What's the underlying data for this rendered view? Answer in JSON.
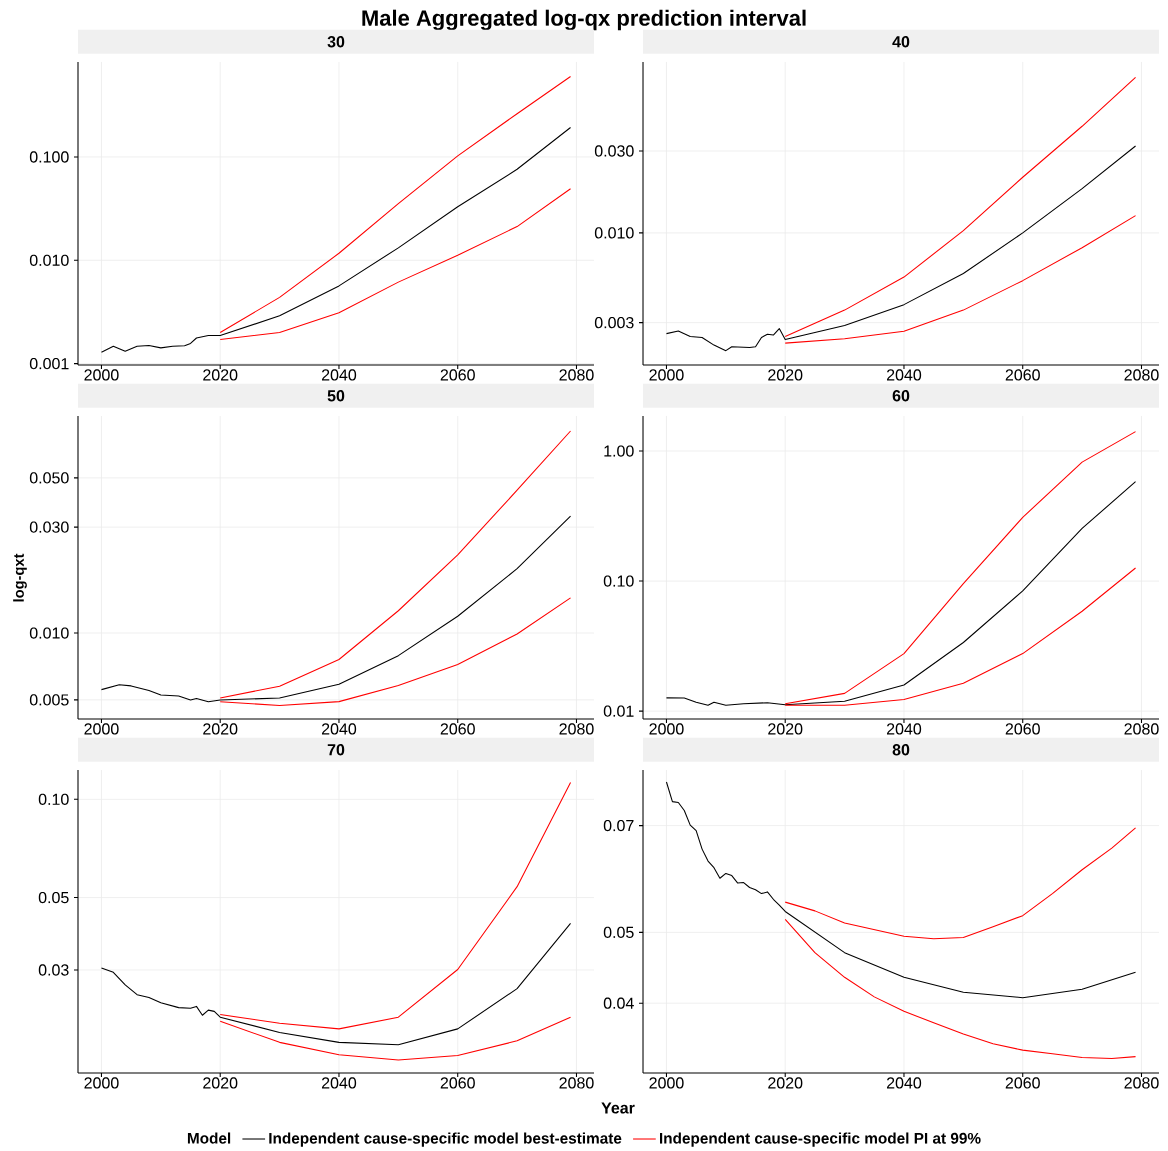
{
  "chart_data": [
    {
      "type": "other",
      "title": "Male Aggregated log-qx prediction interval"
    },
    {
      "type": "line",
      "title": "30",
      "log": "y",
      "grid": true,
      "xlim": [
        1996.05,
        2082.95
      ],
      "ylim": [
        0.00097,
        0.83
      ],
      "xticks": [
        2000,
        2020,
        2040,
        2060,
        2080
      ],
      "yticks": [
        0.001,
        {
          "value": 0.01,
          "label": "0.010"
        },
        {
          "value": 0.1,
          "label": "0.100"
        }
      ],
      "series": [
        {
          "color": "#000000",
          "x": [
            2000,
            2002,
            2004,
            2006,
            2008,
            2010,
            2012,
            2014,
            2015,
            2016,
            2018,
            2020,
            2030,
            2040,
            2050,
            2060,
            2070,
            2079
          ],
          "values": [
            0.00129,
            0.00147,
            0.00132,
            0.00147,
            0.0015,
            0.00142,
            0.00147,
            0.00149,
            0.00157,
            0.00177,
            0.00187,
            0.00187,
            0.0029,
            0.00565,
            0.0132,
            0.033,
            0.076,
            0.193
          ]
        },
        {
          "color": "#ff0000",
          "x": [
            2020,
            2030,
            2040,
            2050,
            2060,
            2070,
            2079
          ],
          "values": [
            0.002,
            0.00438,
            0.0117,
            0.0353,
            0.1026,
            0.262,
            0.6
          ]
        },
        {
          "color": "#ff0000",
          "x": [
            2020,
            2030,
            2040,
            2050,
            2060,
            2070,
            2079
          ],
          "values": [
            0.00171,
            0.002,
            0.00311,
            0.00615,
            0.0112,
            0.0212,
            0.0493
          ]
        }
      ]
    },
    {
      "type": "line",
      "title": "40",
      "log": "y",
      "grid": true,
      "xlim": [
        1996.05,
        2082.95
      ],
      "ylim": [
        0.0017,
        0.099
      ],
      "xticks": [
        2000,
        2020,
        2040,
        2060,
        2080
      ],
      "yticks": [
        0.003,
        {
          "value": 0.01,
          "label": "0.010"
        },
        {
          "value": 0.03,
          "label": "0.030"
        }
      ],
      "series": [
        {
          "color": "#000000",
          "x": [
            2000,
            2002,
            2004,
            2006,
            2008,
            2010,
            2011,
            2014,
            2015,
            2016,
            2017,
            2018,
            2019,
            2020,
            2030,
            2040,
            2050,
            2060,
            2070,
            2079
          ],
          "values": [
            0.00259,
            0.00268,
            0.00249,
            0.00246,
            0.00222,
            0.00206,
            0.00217,
            0.00215,
            0.00217,
            0.00246,
            0.00257,
            0.00254,
            0.00277,
            0.00239,
            0.00289,
            0.00382,
            0.0058,
            0.01,
            0.0181,
            0.0321
          ]
        },
        {
          "color": "#ff0000",
          "x": [
            2020,
            2030,
            2040,
            2050,
            2060,
            2070,
            2079
          ],
          "values": [
            0.00249,
            0.00355,
            0.00553,
            0.0103,
            0.0211,
            0.0418,
            0.0805
          ]
        },
        {
          "color": "#ff0000",
          "x": [
            2020,
            2030,
            2040,
            2050,
            2060,
            2070,
            2079
          ],
          "values": [
            0.00228,
            0.00242,
            0.00267,
            0.00355,
            0.00527,
            0.0082,
            0.0126
          ]
        }
      ]
    },
    {
      "type": "line",
      "title": "50",
      "ylabel": "log-qxt",
      "log": "y",
      "grid": true,
      "xlim": [
        1996.05,
        2082.95
      ],
      "ylim": [
        0.0041,
        0.095
      ],
      "xticks": [
        2000,
        2020,
        2040,
        2060,
        2080
      ],
      "yticks": [
        0.005,
        {
          "value": 0.01,
          "label": "0.010"
        },
        {
          "value": 0.03,
          "label": "0.030"
        },
        {
          "value": 0.05,
          "label": "0.050"
        }
      ],
      "series": [
        {
          "color": "#000000",
          "x": [
            2000,
            2003,
            2005,
            2008,
            2010,
            2013,
            2015,
            2016,
            2018,
            2020,
            2030,
            2040,
            2050,
            2060,
            2070,
            2079
          ],
          "values": [
            0.00556,
            0.00585,
            0.00578,
            0.00551,
            0.00526,
            0.0052,
            0.00499,
            0.00507,
            0.0049,
            0.00499,
            0.0051,
            0.00588,
            0.00791,
            0.0119,
            0.0195,
            0.0336
          ]
        },
        {
          "color": "#ff0000",
          "x": [
            2020,
            2030,
            2040,
            2050,
            2060,
            2070,
            2079
          ],
          "values": [
            0.0051,
            0.00576,
            0.0076,
            0.0126,
            0.0225,
            0.044,
            0.0813
          ]
        },
        {
          "color": "#ff0000",
          "x": [
            2020,
            2030,
            2040,
            2050,
            2060,
            2070,
            2079
          ],
          "values": [
            0.0049,
            0.00472,
            0.00491,
            0.00581,
            0.00722,
            0.0099,
            0.0144
          ]
        }
      ]
    },
    {
      "type": "line",
      "title": "60",
      "log": "y",
      "grid": true,
      "xlim": [
        1996.05,
        2082.95
      ],
      "ylim": [
        0.0087,
        1.86
      ],
      "xticks": [
        2000,
        2020,
        2040,
        2060,
        2080
      ],
      "yticks": [
        0.01,
        {
          "value": 0.1,
          "label": "0.10"
        },
        {
          "value": 1,
          "label": "1.00"
        }
      ],
      "series": [
        {
          "color": "#000000",
          "x": [
            2000,
            2003,
            2005,
            2007,
            2008,
            2010,
            2013,
            2017,
            2020,
            2030,
            2040,
            2050,
            2060,
            2070,
            2079
          ],
          "values": [
            0.01265,
            0.0126,
            0.0117,
            0.0111,
            0.0117,
            0.0111,
            0.0114,
            0.0116,
            0.0112,
            0.0119,
            0.0159,
            0.0337,
            0.084,
            0.254,
            0.582
          ]
        },
        {
          "color": "#ff0000",
          "x": [
            2020,
            2030,
            2040,
            2050,
            2060,
            2070,
            2079
          ],
          "values": [
            0.0114,
            0.0137,
            0.0277,
            0.0955,
            0.309,
            0.822,
            1.41
          ]
        },
        {
          "color": "#ff0000",
          "x": [
            2020,
            2030,
            2040,
            2050,
            2060,
            2070,
            2079
          ],
          "values": [
            0.0111,
            0.0111,
            0.0123,
            0.0164,
            0.0277,
            0.0586,
            0.126
          ]
        }
      ]
    },
    {
      "type": "line",
      "title": "70",
      "xlabel": "Year",
      "legend": "bottom",
      "legend_title": "Model",
      "log": "y",
      "grid": true,
      "xlim": [
        1996.05,
        2082.95
      ],
      "ylim": [
        0.0145,
        0.123
      ],
      "xticks": [
        2000,
        2020,
        2040,
        2060,
        2080
      ],
      "yticks": [
        0.03,
        0.05,
        {
          "value": 0.1,
          "label": "0.10"
        }
      ],
      "series": [
        {
          "name": "Independent cause-specific model best-estimate",
          "color": "#000000",
          "x": [
            2000,
            2002,
            2004,
            2006,
            2008,
            2010,
            2013,
            2015,
            2016,
            2017,
            2018,
            2019,
            2020,
            2030,
            2040,
            2050,
            2060,
            2070,
            2079
          ],
          "values": [
            0.0304,
            0.0295,
            0.027,
            0.0252,
            0.0247,
            0.0238,
            0.023,
            0.0229,
            0.0232,
            0.0218,
            0.0226,
            0.0224,
            0.0215,
            0.0193,
            0.018,
            0.0177,
            0.0198,
            0.0263,
            0.0417
          ]
        },
        {
          "name": "Independent cause-specific model PI at 99%",
          "color": "#ff0000",
          "x": [
            2020,
            2030,
            2040,
            2050,
            2060,
            2070,
            2079
          ],
          "values": [
            0.0219,
            0.0206,
            0.0198,
            0.0215,
            0.0301,
            0.054,
            0.1127
          ]
        },
        {
          "color": "#ff0000",
          "x": [
            2020,
            2030,
            2040,
            2050,
            2060,
            2070,
            2079
          ],
          "values": [
            0.0209,
            0.018,
            0.0165,
            0.0159,
            0.0164,
            0.0182,
            0.0215
          ]
        }
      ]
    },
    {
      "type": "line",
      "title": "80",
      "log": "y",
      "grid": true,
      "xlim": [
        1996.05,
        2082.95
      ],
      "ylim": [
        0.0321,
        0.0834
      ],
      "xticks": [
        2000,
        2020,
        2040,
        2060,
        2080
      ],
      "yticks": [
        0.04,
        0.05,
        0.07
      ],
      "series": [
        {
          "color": "#000000",
          "x": [
            2000,
            2001,
            2002,
            2003,
            2004,
            2005,
            2006,
            2007,
            2008,
            2009,
            2010,
            2011,
            2012,
            2013,
            2014,
            2015,
            2016,
            2017,
            2018,
            2019,
            2020,
            2030,
            2040,
            2050,
            2060,
            2070,
            2079
          ],
          "values": [
            0.0803,
            0.0755,
            0.0753,
            0.0734,
            0.0701,
            0.0689,
            0.065,
            0.0626,
            0.0613,
            0.0593,
            0.0602,
            0.0598,
            0.0584,
            0.0585,
            0.0576,
            0.0572,
            0.0565,
            0.0568,
            0.0555,
            0.0545,
            0.0534,
            0.0469,
            0.0434,
            0.0414,
            0.0407,
            0.0418,
            0.0441
          ]
        },
        {
          "color": "#ff0000",
          "x": [
            2020,
            2025,
            2030,
            2040,
            2045,
            2050,
            2055,
            2060,
            2065,
            2070,
            2075,
            2079
          ],
          "values": [
            0.055,
            0.0535,
            0.0515,
            0.0494,
            0.049,
            0.0492,
            0.0509,
            0.0527,
            0.0565,
            0.0609,
            0.0652,
            0.0695
          ]
        },
        {
          "color": "#ff0000",
          "x": [
            2020,
            2025,
            2030,
            2035,
            2040,
            2045,
            2050,
            2055,
            2060,
            2065,
            2070,
            2075,
            2079
          ],
          "values": [
            0.0521,
            0.0469,
            0.0434,
            0.0408,
            0.039,
            0.0376,
            0.0363,
            0.0352,
            0.0345,
            0.0341,
            0.0337,
            0.0336,
            0.0338
          ]
        }
      ]
    }
  ]
}
